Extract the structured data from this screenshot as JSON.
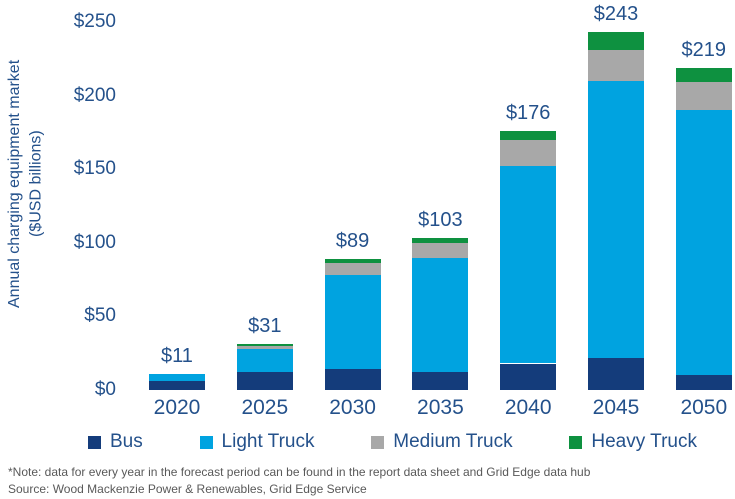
{
  "chart": {
    "ylabel_line1": "Annual charging equipment market",
    "ylabel_line2": "($USD billions)",
    "footnote_line1": "*Note: data for every year in the forecast period can be found in the report data sheet and Grid Edge data hub",
    "footnote_line2": "Source: Wood Mackenzie Power & Renewables, Grid Edge Service"
  },
  "chart_data": {
    "type": "bar",
    "stacked": true,
    "title": "",
    "xlabel": "",
    "ylabel": "Annual charging equipment market ($USD billions)",
    "categories": [
      "2020",
      "2025",
      "2030",
      "2035",
      "2040",
      "2045",
      "2050"
    ],
    "series": [
      {
        "name": "Bus",
        "color": "#143c7b",
        "values": [
          6,
          12,
          14,
          12,
          18,
          22,
          10
        ]
      },
      {
        "name": "Light Truck",
        "color": "#00a3e0",
        "values": [
          5,
          16,
          64,
          78,
          134,
          188,
          180
        ]
      },
      {
        "name": "Medium Truck",
        "color": "#a8a8a8",
        "values": [
          0,
          2,
          8,
          10,
          18,
          21,
          19
        ]
      },
      {
        "name": "Heavy Truck",
        "color": "#0e9140",
        "values": [
          0,
          1,
          3,
          3,
          6,
          12,
          10
        ]
      }
    ],
    "totals": [
      11,
      31,
      89,
      103,
      176,
      243,
      219
    ],
    "total_labels": [
      "$11",
      "$31",
      "$89",
      "$103",
      "$176",
      "$243",
      "$219"
    ],
    "yticks": [
      0,
      50,
      100,
      150,
      200,
      250
    ],
    "ytick_prefix": "$",
    "ylim": [
      0,
      250
    ],
    "grid": false,
    "legend_position": "bottom",
    "text_color": "#24518b",
    "footnote_color": "#595959"
  }
}
